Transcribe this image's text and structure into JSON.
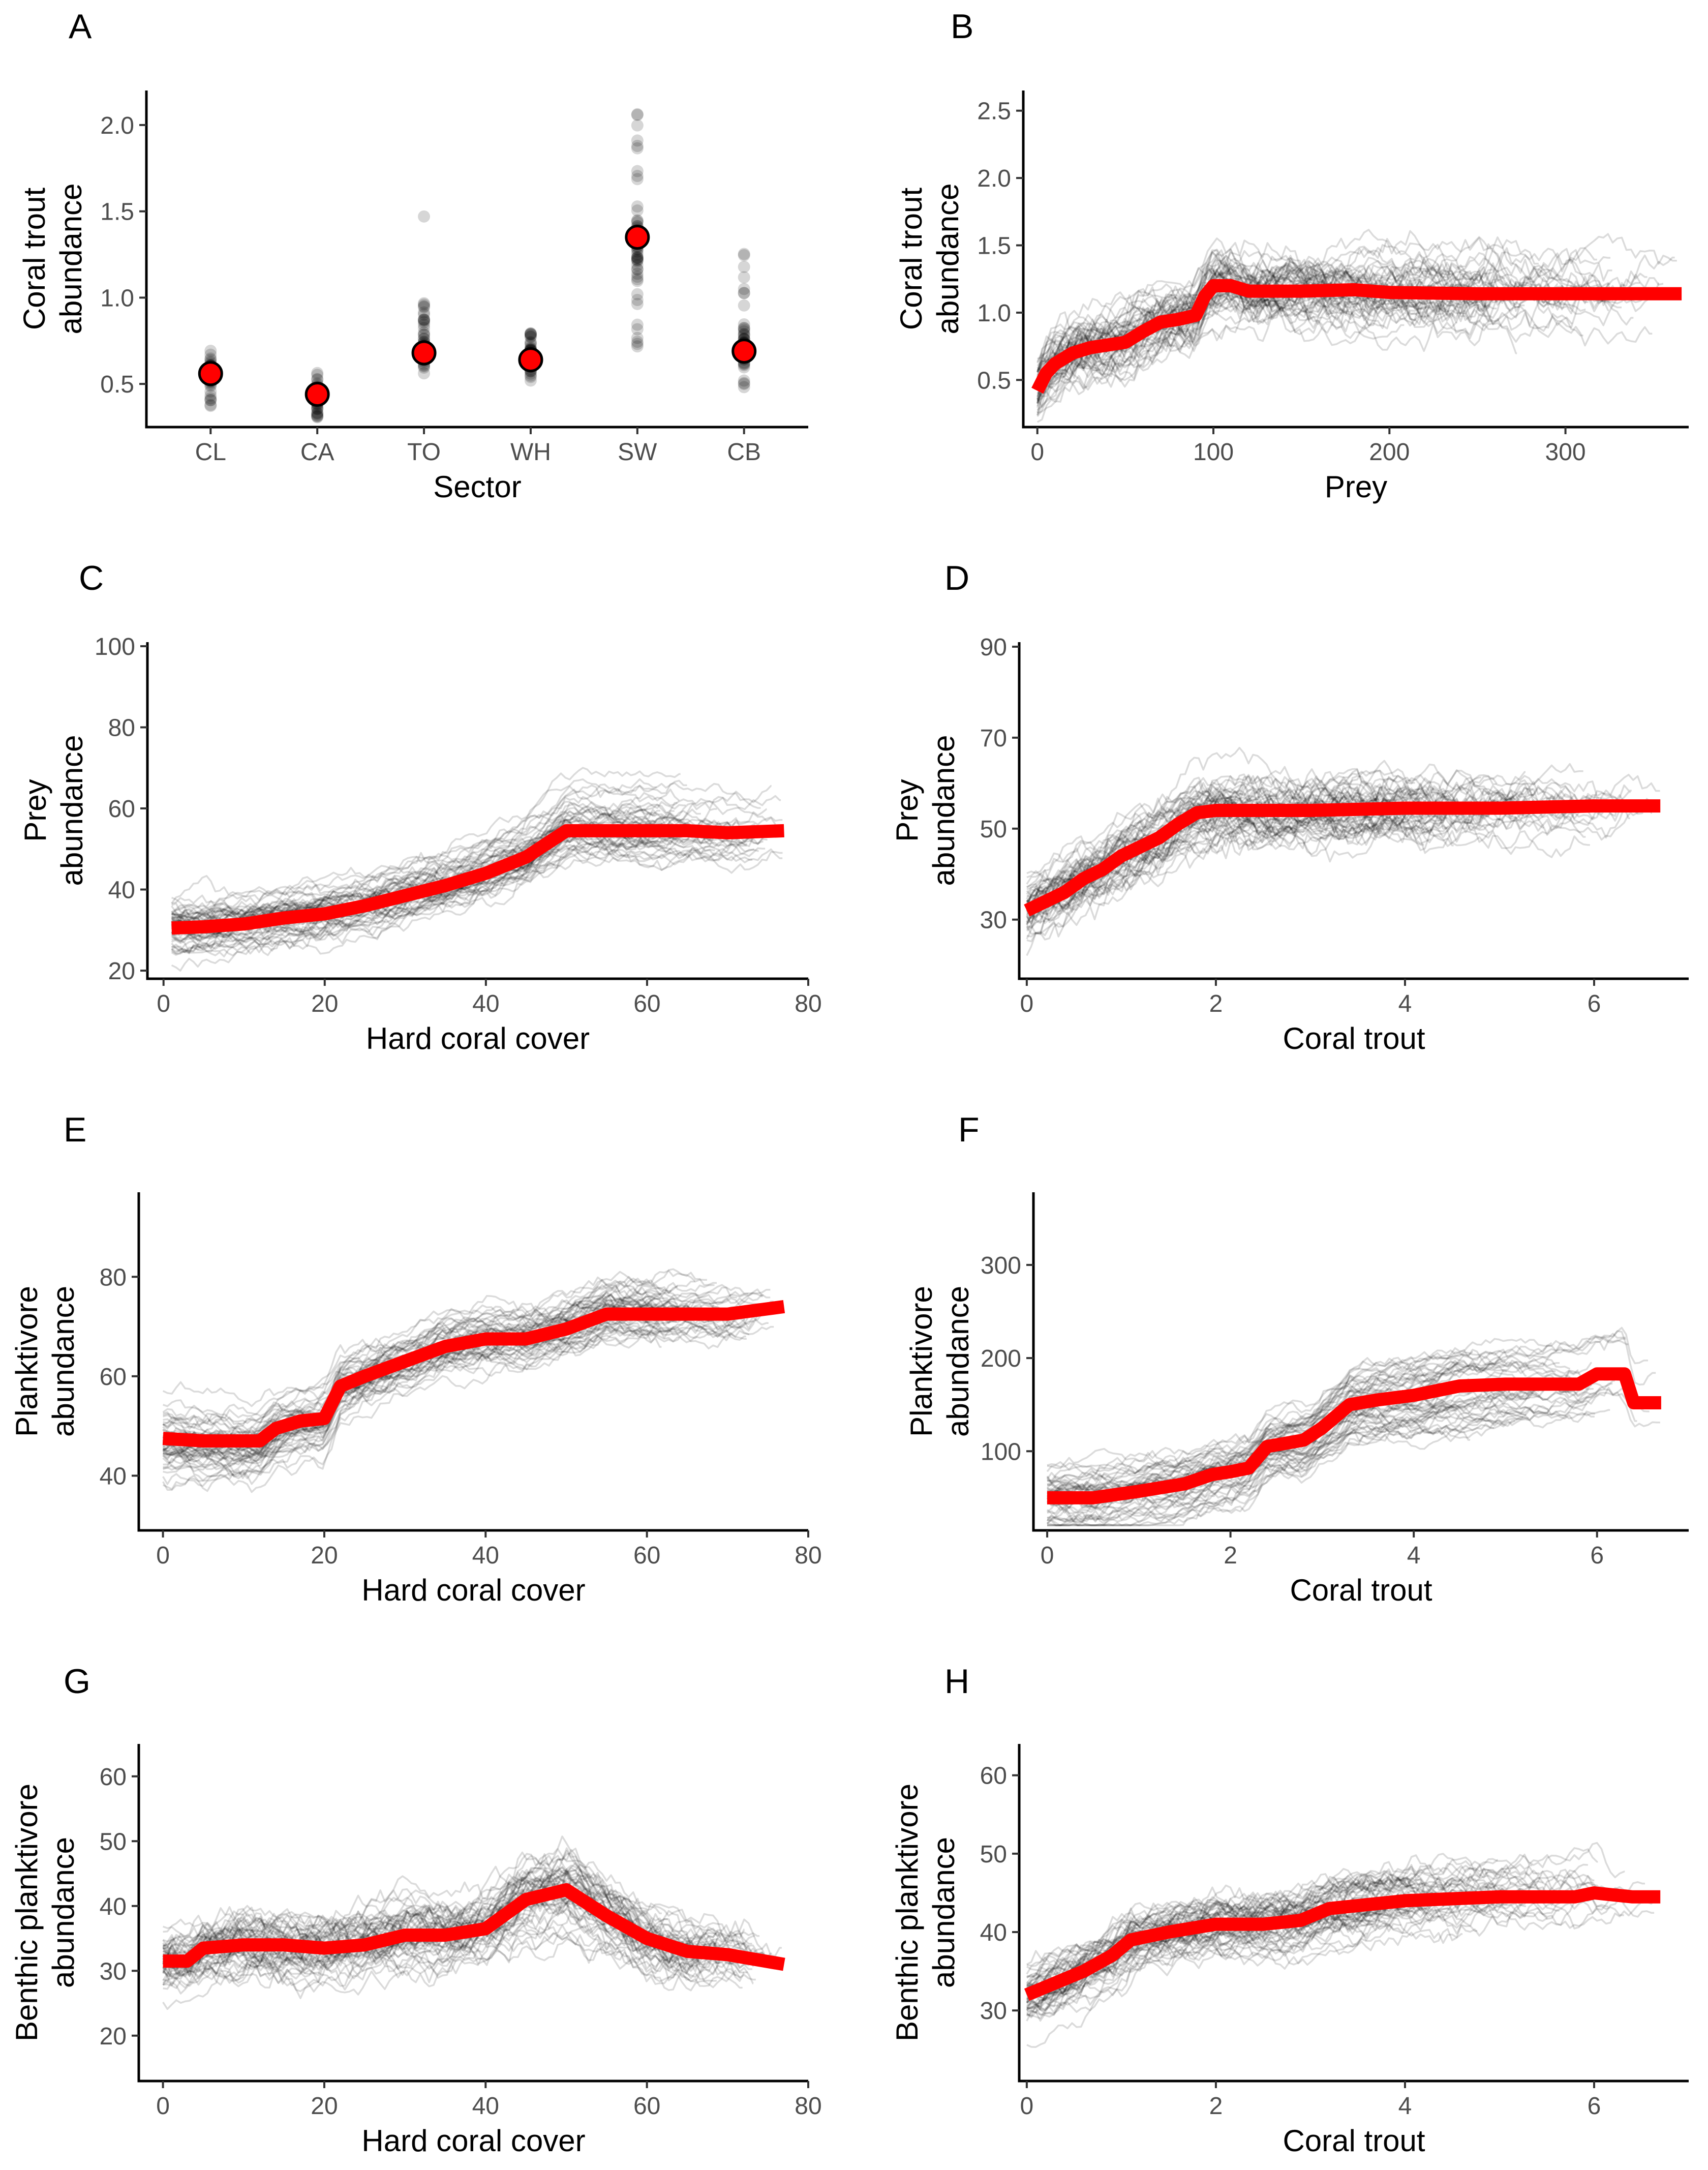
{
  "figure": {
    "panels": [
      "A",
      "B",
      "C",
      "D",
      "E",
      "F",
      "G",
      "H"
    ]
  },
  "chart_data": [
    {
      "panel": "A",
      "type": "scatter",
      "xlabel": "Sector",
      "ylabel": [
        "Coral trout",
        "abundance"
      ],
      "categories": [
        "CL",
        "CA",
        "TO",
        "WH",
        "SW",
        "CB"
      ],
      "means": [
        0.56,
        0.44,
        0.68,
        0.64,
        1.35,
        0.69
      ],
      "ranges": [
        [
          0.37,
          0.76
        ],
        [
          0.3,
          0.58
        ],
        [
          0.54,
          0.97
        ],
        [
          0.5,
          0.82
        ],
        [
          0.7,
          2.15
        ],
        [
          0.45,
          1.27
        ]
      ],
      "outliers": [
        [],
        [],
        [
          1.47
        ],
        [],
        [],
        []
      ],
      "ylim": [
        0.25,
        2.2
      ],
      "yticks": [
        0.5,
        1.0,
        1.5,
        2.0
      ],
      "ytick_labels": [
        "0.5",
        "1.0",
        "1.5",
        "2.0"
      ]
    },
    {
      "panel": "B",
      "type": "line",
      "xlabel": "Prey",
      "ylabel": [
        "Coral trout",
        "abundance"
      ],
      "xlim": [
        -8,
        370
      ],
      "ylim": [
        0.15,
        2.65
      ],
      "xticks": [
        0,
        100,
        200,
        300
      ],
      "xtick_labels": [
        "0",
        "100",
        "200",
        "300"
      ],
      "yticks": [
        0.5,
        1.0,
        1.5,
        2.0,
        2.5
      ],
      "ytick_labels": [
        "0.5",
        "1.0",
        "1.5",
        "2.0",
        "2.5"
      ],
      "pdp": {
        "x": [
          0,
          5,
          10,
          15,
          20,
          30,
          40,
          50,
          55,
          60,
          70,
          80,
          90,
          95,
          100,
          110,
          120,
          150,
          180,
          200,
          250,
          300,
          366
        ],
        "y": [
          0.42,
          0.55,
          0.62,
          0.66,
          0.7,
          0.74,
          0.76,
          0.78,
          0.82,
          0.86,
          0.93,
          0.95,
          0.98,
          1.12,
          1.2,
          1.2,
          1.16,
          1.16,
          1.17,
          1.15,
          1.14,
          1.14,
          1.14
        ]
      },
      "ice": {
        "n": 55,
        "spread": 0.33,
        "jitter": 0.18,
        "min_end": 150
      }
    },
    {
      "panel": "C",
      "type": "line",
      "xlabel": "Hard coral cover",
      "ylabel": [
        "Prey",
        "abundance"
      ],
      "xlim": [
        -2,
        80
      ],
      "ylim": [
        18,
        101
      ],
      "xticks": [
        0,
        20,
        40,
        60,
        80
      ],
      "xtick_labels": [
        "0",
        "20",
        "40",
        "60",
        "80"
      ],
      "yticks": [
        20,
        40,
        60,
        80,
        100
      ],
      "ytick_labels": [
        "20",
        "40",
        "60",
        "80",
        "100"
      ],
      "pdp": {
        "x": [
          1,
          5,
          10,
          15,
          20,
          25,
          30,
          35,
          40,
          45,
          50,
          55,
          60,
          65,
          70,
          77
        ],
        "y": [
          30.5,
          30.8,
          31.5,
          33,
          34,
          36,
          38.5,
          41,
          44,
          48,
          54.5,
          54.5,
          54.5,
          54.5,
          54,
          54.5
        ]
      },
      "ice": {
        "n": 55,
        "spread": 0.36,
        "jitter": 3.0,
        "min_end": 60
      }
    },
    {
      "panel": "D",
      "type": "line",
      "xlabel": "Coral trout",
      "ylabel": [
        "Prey",
        "abundance"
      ],
      "xlim": [
        -0.08,
        7.0
      ],
      "ylim": [
        17,
        91
      ],
      "xticks": [
        0,
        2,
        4,
        6
      ],
      "xtick_labels": [
        "0",
        "2",
        "4",
        "6"
      ],
      "yticks": [
        30,
        50,
        70,
        90
      ],
      "ytick_labels": [
        "30",
        "50",
        "70",
        "90"
      ],
      "pdp": {
        "x": [
          0,
          0.2,
          0.4,
          0.6,
          0.8,
          1.0,
          1.2,
          1.4,
          1.6,
          1.8,
          2.0,
          3,
          4,
          5,
          6,
          6.7
        ],
        "y": [
          32,
          34,
          36,
          39,
          41,
          44,
          46,
          48,
          51,
          53.5,
          54,
          54,
          54.5,
          54.5,
          55,
          55
        ]
      },
      "ice": {
        "n": 55,
        "spread": 0.32,
        "jitter": 4.5,
        "min_end": 3.5
      }
    },
    {
      "panel": "E",
      "type": "line",
      "xlabel": "Hard coral cover",
      "ylabel": [
        "Planktivore",
        "abundance"
      ],
      "xlim": [
        -3,
        80
      ],
      "ylim": [
        29,
        97
      ],
      "xticks": [
        0,
        20,
        40,
        60,
        80
      ],
      "xtick_labels": [
        "0",
        "20",
        "40",
        "60",
        "80"
      ],
      "yticks": [
        40,
        60,
        80
      ],
      "ytick_labels": [
        "40",
        "60",
        "80"
      ],
      "pdp": {
        "x": [
          0,
          5,
          10,
          12,
          14,
          17,
          20,
          22,
          25,
          30,
          35,
          40,
          45,
          50,
          55,
          60,
          65,
          70,
          77
        ],
        "y": [
          47.5,
          47,
          47,
          47,
          49.5,
          51,
          51.5,
          58,
          60,
          63,
          66,
          67.5,
          67.5,
          69.5,
          72.5,
          72.5,
          72.5,
          72.5,
          74
        ]
      },
      "ice": {
        "n": 55,
        "spread": 0.33,
        "jitter": 2.5,
        "min_end": 60
      }
    },
    {
      "panel": "F",
      "type": "line",
      "xlabel": "Coral trout",
      "ylabel": [
        "Planktivore",
        "abundance"
      ],
      "xlim": [
        -0.15,
        7.0
      ],
      "ylim": [
        15,
        378
      ],
      "xticks": [
        0,
        2,
        4,
        6
      ],
      "xtick_labels": [
        "0",
        "2",
        "4",
        "6"
      ],
      "yticks": [
        100,
        200,
        300
      ],
      "ytick_labels": [
        "100",
        "200",
        "300"
      ],
      "pdp": {
        "x": [
          0,
          0.5,
          1.0,
          1.5,
          1.8,
          2.0,
          2.2,
          2.4,
          2.8,
          3.0,
          3.3,
          3.6,
          4.0,
          4.5,
          5,
          5.5,
          5.8,
          6.0,
          6.3,
          6.4,
          6.7
        ],
        "y": [
          50,
          50,
          57,
          65,
          75,
          78,
          82,
          105,
          112,
          125,
          150,
          155,
          160,
          170,
          172,
          172,
          172,
          183,
          183,
          152,
          152
        ]
      },
      "ice": {
        "n": 55,
        "spread": 0.38,
        "jitter": 12,
        "min_end": 4.0
      }
    },
    {
      "panel": "G",
      "type": "line",
      "xlabel": "Hard coral cover",
      "ylabel": [
        "Benthic planktivore",
        "abundance"
      ],
      "xlim": [
        -3,
        80
      ],
      "ylim": [
        13,
        65
      ],
      "xticks": [
        0,
        20,
        40,
        60,
        80
      ],
      "xtick_labels": [
        "0",
        "20",
        "40",
        "60",
        "80"
      ],
      "yticks": [
        20,
        30,
        40,
        50,
        60
      ],
      "ytick_labels": [
        "20",
        "30",
        "40",
        "50",
        "60"
      ],
      "pdp": {
        "x": [
          0,
          3,
          5,
          10,
          15,
          20,
          25,
          30,
          35,
          40,
          45,
          50,
          55,
          60,
          65,
          70,
          77
        ],
        "y": [
          31.5,
          31.5,
          33.5,
          34,
          34,
          33.5,
          34,
          35.5,
          35.5,
          36.5,
          41,
          42.5,
          38.5,
          35,
          33,
          32.5,
          31
        ]
      },
      "ice": {
        "n": 55,
        "spread": 0.32,
        "jitter": 3.0,
        "min_end": 60
      }
    },
    {
      "panel": "H",
      "type": "line",
      "xlabel": "Coral trout",
      "ylabel": [
        "Benthic planktivore",
        "abundance"
      ],
      "xlim": [
        -0.08,
        7.0
      ],
      "ylim": [
        21,
        64
      ],
      "xticks": [
        0,
        2,
        4,
        6
      ],
      "xtick_labels": [
        "0",
        "2",
        "4",
        "6"
      ],
      "yticks": [
        30,
        40,
        50,
        60
      ],
      "ytick_labels": [
        "30",
        "40",
        "50",
        "60"
      ],
      "pdp": {
        "x": [
          0,
          0.3,
          0.6,
          0.9,
          1.1,
          1.5,
          2.0,
          2.5,
          2.9,
          3.2,
          3.6,
          4.0,
          5,
          5.8,
          6.0,
          6.4,
          6.7
        ],
        "y": [
          32,
          33.5,
          35,
          37,
          39,
          40,
          41,
          41,
          41.5,
          43,
          43.5,
          44,
          44.5,
          44.5,
          45,
          44.5,
          44.5
        ]
      },
      "ice": {
        "n": 55,
        "spread": 0.33,
        "jitter": 2.2,
        "min_end": 3.5
      }
    }
  ]
}
